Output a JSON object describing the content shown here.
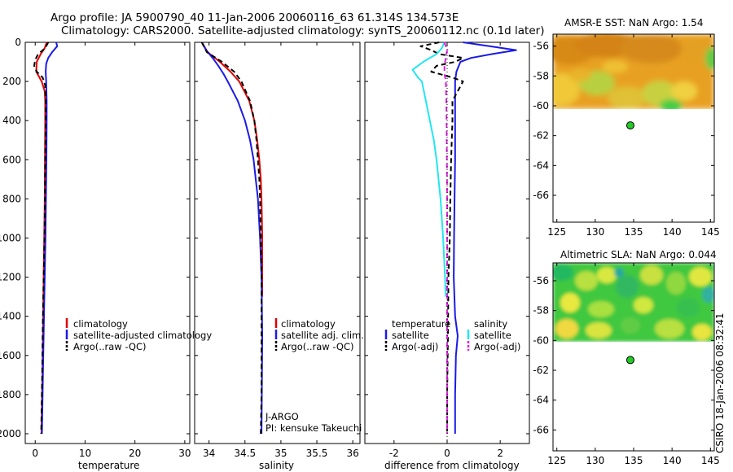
{
  "header": {
    "line1": "Argo profile: JA 5900790_40 11-Jan-2006 20060116_63 61.314S 134.573E",
    "line2": "Climatology: CARS2000. Satellite-adjusted climatology: synTS_20060112.nc (0.1d later)"
  },
  "colors": {
    "climatology": "#e00000",
    "satellite": "#1a1ae6",
    "argo": "#000000",
    "sal_satellite": "#22e6f0",
    "sal_argo": "#e020e0",
    "marker": "#22cc22"
  },
  "chart_data": [
    {
      "id": "temperature",
      "type": "line",
      "xlabel": "temperature",
      "ylabel": "depth",
      "xlim": [
        -2,
        31
      ],
      "ylim": [
        2050,
        0
      ],
      "xticks": [
        0,
        10,
        20,
        30
      ],
      "yticks": [
        0,
        200,
        400,
        600,
        800,
        1000,
        1200,
        1400,
        1600,
        1800,
        2000
      ],
      "legend": {
        "position": "lower-right",
        "entries": [
          "climatology",
          "satellite-adjusted climatology",
          "Argo(..raw -QC)"
        ]
      },
      "series": [
        {
          "name": "climatology",
          "color": "#e00000",
          "dash": "solid",
          "depth": [
            0,
            30,
            60,
            100,
            150,
            200,
            250,
            300,
            400,
            600,
            800,
            1000,
            1200,
            1400,
            1700,
            2000
          ],
          "values": [
            2.3,
            1.9,
            1.1,
            0.3,
            0.2,
            1.3,
            1.9,
            2.0,
            2.0,
            1.95,
            1.9,
            1.8,
            1.7,
            1.6,
            1.45,
            1.25
          ]
        },
        {
          "name": "satellite-adjusted climatology",
          "color": "#1a1ae6",
          "dash": "solid",
          "depth": [
            0,
            20,
            50,
            80,
            110,
            150,
            200,
            300,
            400,
            600,
            800,
            1000,
            1200,
            1400,
            1700,
            2000
          ],
          "values": [
            4.2,
            4.4,
            3.4,
            2.6,
            2.2,
            2.1,
            2.2,
            2.3,
            2.3,
            2.25,
            2.15,
            2.05,
            1.9,
            1.75,
            1.55,
            1.35
          ]
        },
        {
          "name": "Argo(..raw -QC)",
          "color": "#000000",
          "dash": "dashed",
          "depth": [
            0,
            30,
            60,
            90,
            120,
            150,
            180,
            220,
            300,
            400,
            600,
            800,
            1000,
            1200,
            1400,
            1700,
            2000
          ],
          "values": [
            2.6,
            2.0,
            0.6,
            0.0,
            -0.2,
            0.3,
            1.5,
            2.0,
            2.1,
            2.1,
            2.0,
            1.95,
            1.85,
            1.7,
            1.55,
            1.4,
            1.2
          ]
        }
      ]
    },
    {
      "id": "salinity",
      "type": "line",
      "xlabel": "salinity",
      "ylabel": "depth",
      "xlim": [
        33.8,
        36.1
      ],
      "ylim": [
        2050,
        0
      ],
      "xticks": [
        34,
        34.5,
        35,
        35.5,
        36
      ],
      "xticklabels": [
        "34",
        "34.5",
        "35",
        "35.5",
        "36"
      ],
      "legend": {
        "position": "lower-right",
        "entries": [
          "climatology",
          "satellite adj. clim.",
          "Argo(..raw -QC)"
        ]
      },
      "annotations": [
        "J-ARGO",
        "PI: kensuke Takeuchi"
      ],
      "series": [
        {
          "name": "climatology",
          "color": "#e00000",
          "dash": "solid",
          "depth": [
            0,
            50,
            100,
            150,
            200,
            300,
            400,
            500,
            600,
            700,
            800,
            1000,
            1200,
            1300
          ],
          "values": [
            33.9,
            33.98,
            34.15,
            34.3,
            34.42,
            34.56,
            34.63,
            34.67,
            34.7,
            34.72,
            34.73,
            34.74,
            34.74,
            34.74
          ]
        },
        {
          "name": "satellite adj. clim.",
          "color": "#1a1ae6",
          "dash": "solid",
          "depth": [
            0,
            40,
            80,
            120,
            160,
            200,
            250,
            300,
            400,
            500,
            600,
            700,
            800,
            1000,
            1200,
            1500,
            2000
          ],
          "values": [
            33.9,
            33.96,
            34.05,
            34.13,
            34.2,
            34.26,
            34.33,
            34.4,
            34.5,
            34.57,
            34.62,
            34.65,
            34.68,
            34.71,
            34.73,
            34.74,
            34.73
          ]
        },
        {
          "name": "Argo(..raw -QC)",
          "color": "#000000",
          "dash": "dashed",
          "depth": [
            0,
            50,
            100,
            150,
            200,
            300,
            400,
            500,
            600,
            700,
            800,
            1000,
            1200,
            1500,
            1800,
            2000
          ],
          "values": [
            33.9,
            33.97,
            34.18,
            34.35,
            34.45,
            34.57,
            34.63,
            34.66,
            34.68,
            34.7,
            34.71,
            34.72,
            34.73,
            34.73,
            34.73,
            34.72
          ]
        }
      ]
    },
    {
      "id": "difference",
      "type": "line",
      "xlabel": "difference from climatology",
      "ylabel": "depth",
      "xlim": [
        -3.1,
        3.1
      ],
      "ylim": [
        2050,
        0
      ],
      "xticks": [
        -2,
        0,
        2
      ],
      "legend": {
        "position": "lower-right",
        "temperature_label": "temperature",
        "salinity_label": "salinity",
        "temperature_entries": [
          "satellite",
          "Argo(-adj)"
        ],
        "salinity_entries": [
          "satellite",
          "Argo(-adj)"
        ]
      },
      "series": [
        {
          "name": "temperature satellite",
          "color": "#1a1ae6",
          "dash": "solid",
          "depth": [
            0,
            20,
            40,
            60,
            80,
            100,
            150,
            200,
            300,
            400,
            600,
            800,
            1000,
            1200,
            1400,
            1500,
            1600,
            1800,
            2000
          ],
          "values": [
            0.6,
            1.6,
            2.6,
            1.7,
            0.9,
            0.5,
            0.35,
            0.3,
            0.3,
            0.3,
            0.3,
            0.28,
            0.26,
            0.25,
            0.3,
            0.4,
            0.33,
            0.3,
            0.3
          ]
        },
        {
          "name": "temperature Argo(-adj)",
          "color": "#000000",
          "dash": "dashed",
          "depth": [
            0,
            20,
            40,
            60,
            80,
            100,
            120,
            150,
            180,
            200,
            250,
            300,
            400,
            600,
            800,
            1000,
            1200,
            1500,
            1800,
            2000
          ],
          "values": [
            -0.3,
            -1.0,
            -0.6,
            -0.3,
            0.6,
            0.3,
            -0.4,
            -0.6,
            0.2,
            0.6,
            0.4,
            0.2,
            0.2,
            0.15,
            0.12,
            0.1,
            0.05,
            0.03,
            0.0,
            0.0
          ]
        },
        {
          "name": "salinity satellite",
          "color": "#22e6f0",
          "dash": "solid",
          "depth": [
            0,
            30,
            60,
            100,
            140,
            180,
            200,
            300,
            400,
            500,
            600,
            800,
            1000,
            1200,
            1300
          ],
          "values": [
            -0.1,
            -0.2,
            -0.4,
            -0.9,
            -1.3,
            -1.1,
            -0.95,
            -0.8,
            -0.65,
            -0.5,
            -0.4,
            -0.25,
            -0.15,
            -0.08,
            -0.05
          ]
        },
        {
          "name": "salinity Argo(-adj)",
          "color": "#e020e0",
          "dash": "dashed",
          "depth": [
            0,
            40,
            80,
            120,
            160,
            200,
            300,
            400,
            600,
            800,
            1000,
            1200,
            1500,
            2000
          ],
          "values": [
            -0.1,
            0.0,
            -0.05,
            -0.1,
            -0.1,
            -0.05,
            -0.03,
            -0.02,
            -0.01,
            0.0,
            0.0,
            0.0,
            0.0,
            0.0
          ]
        }
      ]
    },
    {
      "id": "amsr-sst-map",
      "type": "heatmap",
      "title": "AMSR-E SST: NaN Argo: 1.54",
      "xlim": [
        124.5,
        145.5
      ],
      "ylim": [
        -67.8,
        -55.2
      ],
      "xticks": [
        125,
        130,
        135,
        140,
        145
      ],
      "yticks": [
        -56,
        -58,
        -60,
        -62,
        -64,
        -66
      ],
      "data_extent_lat": [
        -60.2,
        -55.2
      ],
      "palette": "orange-yellow-green",
      "argo_marker": {
        "lon": 134.573,
        "lat": -61.314
      }
    },
    {
      "id": "altimetric-sla-map",
      "type": "heatmap",
      "title": "Altimetric SLA: NaN Argo: 0.044",
      "xlim": [
        124.5,
        145.5
      ],
      "ylim": [
        -67.4,
        -54.8
      ],
      "xticks": [
        125,
        130,
        135,
        140,
        145
      ],
      "yticks": [
        -56,
        -58,
        -60,
        -62,
        -64,
        -66
      ],
      "data_extent_lat": [
        -60.2,
        -54.8
      ],
      "palette": "green-yellow",
      "argo_marker": {
        "lon": 134.573,
        "lat": -61.314
      }
    }
  ],
  "credit": "CSIRO 18-Jan-2006 08:32:41"
}
